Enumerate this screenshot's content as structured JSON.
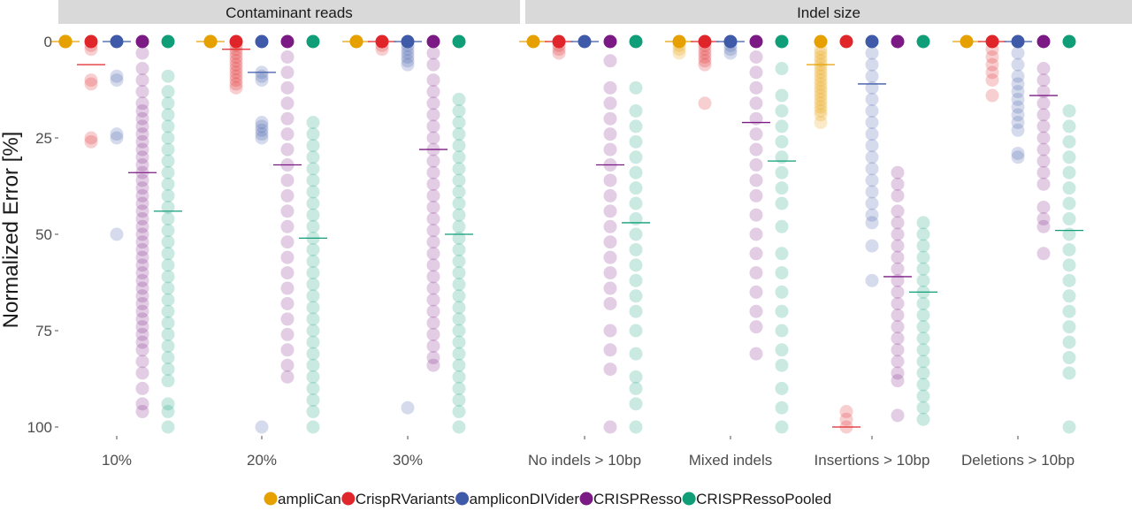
{
  "chart_data": {
    "type": "scatter",
    "ylabel": "Normalized Error [%]",
    "xlabel": "",
    "ylim": [
      0,
      100
    ],
    "y_reversed": true,
    "yticks": [
      "0",
      "25",
      "50",
      "75",
      "100"
    ],
    "grid": false,
    "legend_position": "bottom",
    "series": [
      {
        "name": "ampliCan",
        "color": "#E6A000"
      },
      {
        "name": "CrispRVariants",
        "color": "#E0262B"
      },
      {
        "name": "ampliconDIVider",
        "color": "#3E5AA8"
      },
      {
        "name": "CRISPResso",
        "color": "#7B1A84"
      },
      {
        "name": "CRISPRessoPooled",
        "color": "#0F9E78"
      }
    ],
    "panels": [
      {
        "title": "Contaminant reads",
        "categories": [
          {
            "label": "10%",
            "points": {
              "ampliCan": [
                0,
                0,
                0
              ],
              "CrispRVariants": [
                0,
                1,
                2,
                10,
                11,
                25,
                26
              ],
              "ampliconDIVider": [
                0,
                9,
                10,
                24,
                25,
                50
              ],
              "CRISPResso": [
                0,
                3,
                7,
                10,
                13,
                16,
                18,
                20,
                22,
                24,
                26,
                28,
                30,
                32,
                34,
                36,
                38,
                40,
                42,
                44,
                46,
                48,
                50,
                52,
                54,
                56,
                58,
                60,
                62,
                64,
                66,
                68,
                70,
                72,
                74,
                76,
                78,
                80,
                83,
                86,
                90,
                94,
                96
              ],
              "CRISPRessoPooled": [
                0,
                9,
                13,
                16,
                19,
                22,
                25,
                28,
                31,
                34,
                37,
                40,
                43,
                46,
                49,
                52,
                55,
                58,
                61,
                64,
                67,
                70,
                73,
                76,
                79,
                82,
                85,
                88,
                94,
                96,
                100
              ]
            },
            "means": {
              "ampliCan": 0,
              "CrispRVariants": 6,
              "ampliconDIVider": 0,
              "CRISPResso": 34,
              "CRISPRessoPooled": 44
            }
          },
          {
            "label": "20%",
            "points": {
              "ampliCan": [
                0,
                0
              ],
              "CrispRVariants": [
                0,
                1,
                2,
                3,
                4,
                5,
                6,
                7,
                8,
                9,
                10,
                11,
                12
              ],
              "ampliconDIVider": [
                0,
                8,
                9,
                10,
                21,
                22,
                23,
                24,
                25,
                100
              ],
              "CRISPResso": [
                0,
                4,
                8,
                12,
                16,
                20,
                24,
                28,
                32,
                36,
                40,
                44,
                48,
                52,
                56,
                60,
                64,
                68,
                72,
                76,
                80,
                84,
                87
              ],
              "CRISPRessoPooled": [
                0,
                21,
                24,
                27,
                30,
                33,
                36,
                39,
                42,
                45,
                48,
                51,
                54,
                57,
                60,
                63,
                66,
                69,
                72,
                75,
                78,
                81,
                84,
                87,
                90,
                93,
                96,
                100
              ]
            },
            "means": {
              "ampliCan": 0,
              "CrispRVariants": 2,
              "ampliconDIVider": 8,
              "CRISPResso": 32,
              "CRISPRessoPooled": 51
            }
          },
          {
            "label": "30%",
            "points": {
              "ampliCan": [
                0,
                0
              ],
              "CrispRVariants": [
                0,
                1,
                2
              ],
              "ampliconDIVider": [
                0,
                1,
                2,
                3,
                4,
                5,
                6,
                95
              ],
              "CRISPResso": [
                0,
                3,
                6,
                10,
                13,
                16,
                19,
                22,
                25,
                28,
                31,
                34,
                37,
                40,
                43,
                46,
                49,
                52,
                55,
                58,
                61,
                64,
                67,
                70,
                73,
                76,
                79,
                82,
                84
              ],
              "CRISPRessoPooled": [
                0,
                15,
                18,
                21,
                24,
                27,
                30,
                33,
                36,
                39,
                42,
                45,
                48,
                51,
                54,
                57,
                60,
                63,
                66,
                69,
                72,
                75,
                78,
                81,
                84,
                87,
                90,
                93,
                96,
                100
              ]
            },
            "means": {
              "ampliCan": 0,
              "CrispRVariants": 0,
              "ampliconDIVider": 0,
              "CRISPResso": 28,
              "CRISPRessoPooled": 50
            }
          }
        ]
      },
      {
        "title": "Indel size",
        "categories": [
          {
            "label": "No indels > 10bp",
            "points": {
              "ampliCan": [
                0
              ],
              "CrispRVariants": [
                0,
                1,
                2,
                3
              ],
              "ampliconDIVider": [
                0
              ],
              "CRISPResso": [
                0,
                5,
                12,
                16,
                20,
                24,
                28,
                32,
                36,
                40,
                44,
                48,
                52,
                56,
                60,
                64,
                68,
                75,
                80,
                85,
                100
              ],
              "CRISPRessoPooled": [
                0,
                12,
                18,
                22,
                26,
                30,
                34,
                38,
                42,
                46,
                50,
                54,
                58,
                62,
                66,
                70,
                75,
                81,
                87,
                90,
                94,
                100
              ]
            },
            "means": {
              "ampliCan": 0,
              "CrispRVariants": 0,
              "ampliconDIVider": 0,
              "CRISPResso": 32,
              "CRISPRessoPooled": 47
            }
          },
          {
            "label": "Mixed indels",
            "points": {
              "ampliCan": [
                0,
                1,
                2,
                3
              ],
              "CrispRVariants": [
                0,
                1,
                2,
                3,
                4,
                5,
                6,
                16
              ],
              "ampliconDIVider": [
                0,
                1,
                2,
                3
              ],
              "CRISPResso": [
                0,
                4,
                8,
                12,
                16,
                20,
                24,
                28,
                32,
                36,
                40,
                45,
                50,
                55,
                60,
                65,
                70,
                74,
                81
              ],
              "CRISPRessoPooled": [
                0,
                7,
                14,
                18,
                22,
                26,
                30,
                34,
                38,
                42,
                48,
                55,
                60,
                65,
                70,
                75,
                80,
                84,
                90,
                95,
                100
              ]
            },
            "means": {
              "ampliCan": 0,
              "CrispRVariants": 0,
              "ampliconDIVider": 0,
              "CRISPResso": 21,
              "CRISPRessoPooled": 31
            }
          },
          {
            "label": "Insertions > 10bp",
            "points": {
              "ampliCan": [
                0,
                2,
                3,
                4,
                5,
                6,
                7,
                8,
                9,
                10,
                11,
                12,
                13,
                14,
                15,
                16,
                17,
                18,
                19,
                21
              ],
              "CrispRVariants": [
                0,
                96,
                98,
                100
              ],
              "ampliconDIVider": [
                0,
                3,
                6,
                9,
                12,
                15,
                18,
                21,
                24,
                27,
                30,
                33,
                36,
                39,
                42,
                45,
                47,
                53,
                62
              ],
              "CRISPResso": [
                0,
                34,
                37,
                40,
                44,
                47,
                50,
                53,
                56,
                59,
                62,
                65,
                68,
                71,
                74,
                77,
                80,
                83,
                86,
                88,
                97
              ],
              "CRISPRessoPooled": [
                0,
                47,
                50,
                53,
                56,
                59,
                62,
                65,
                68,
                71,
                74,
                77,
                80,
                83,
                86,
                89,
                92,
                95,
                98
              ]
            },
            "means": {
              "ampliCan": 6,
              "CrispRVariants": 100,
              "ampliconDIVider": 11,
              "CRISPResso": 61,
              "CRISPRessoPooled": 65
            }
          },
          {
            "label": "Deletions > 10bp",
            "points": {
              "ampliCan": [
                0
              ],
              "CrispRVariants": [
                0,
                2,
                4,
                6,
                8,
                10,
                14
              ],
              "ampliconDIVider": [
                0,
                3,
                6,
                9,
                11,
                13,
                15,
                17,
                19,
                21,
                23,
                29,
                30
              ],
              "CRISPResso": [
                0,
                7,
                10,
                13,
                16,
                19,
                22,
                25,
                28,
                31,
                34,
                37,
                43,
                46,
                48,
                55
              ],
              "CRISPRessoPooled": [
                0,
                18,
                22,
                26,
                30,
                34,
                38,
                42,
                46,
                50,
                54,
                58,
                62,
                66,
                70,
                74,
                78,
                82,
                86,
                100
              ]
            },
            "means": {
              "ampliCan": 0,
              "CrispRVariants": 0,
              "ampliconDIVider": 0,
              "CRISPResso": 14,
              "CRISPRessoPooled": 49
            }
          }
        ]
      }
    ]
  }
}
